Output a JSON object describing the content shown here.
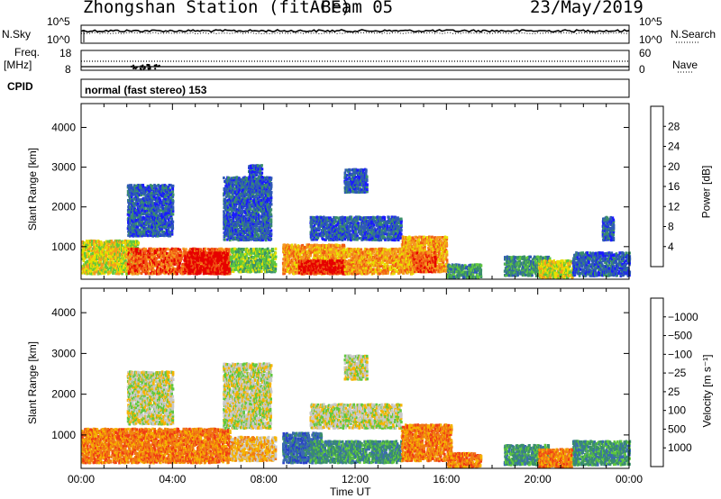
{
  "header": {
    "station": "Zhongshan Station (fitACF)",
    "beam": "Beam 05",
    "date": "23/May/2019"
  },
  "strip_labels": {
    "nsky": "N.Sky",
    "nsearch": "N.Search",
    "freq_line1": "Freq.",
    "freq_line2": "[MHz]",
    "nave": "Nave",
    "cpid": "CPID",
    "cpid_text": "normal (fast stereo) 153",
    "noise_ticks": [
      "10^5",
      "10^0"
    ],
    "freq_ticks": [
      "18",
      "8"
    ],
    "nave_ticks": [
      "60",
      "0"
    ]
  },
  "time_axis": {
    "label": "Time UT",
    "ticks": [
      "00:00",
      "04:00",
      "08:00",
      "12:00",
      "16:00",
      "20:00",
      "00:00"
    ]
  },
  "chart_data": [
    {
      "type": "heatmap",
      "name": "power",
      "ylabel": "Slant Range [km]",
      "yticks": [
        1000,
        2000,
        3000,
        4000
      ],
      "ylim": [
        180,
        4600
      ],
      "xlim_hours": [
        0,
        24
      ],
      "colorbar": {
        "label": "Power [dB]",
        "ticks": [
          "4",
          "8",
          "12",
          "16",
          "20",
          "24",
          "28"
        ],
        "colors": [
          "#1a1aff",
          "#2f5ab5",
          "#3a8f6a",
          "#5fc83c",
          "#e8e000",
          "#f59a1e",
          "#f05a14",
          "#e60000"
        ]
      },
      "regions": [
        {
          "t0": 0.0,
          "t1": 2.5,
          "r0": 350,
          "r1": 1200,
          "level": 4
        },
        {
          "t0": 2.0,
          "t1": 6.5,
          "r0": 350,
          "r1": 1000,
          "level": 6
        },
        {
          "t0": 4.5,
          "t1": 6.5,
          "r0": 350,
          "r1": 900,
          "level": 7
        },
        {
          "t0": 6.5,
          "t1": 8.5,
          "r0": 400,
          "r1": 1000,
          "level": 3
        },
        {
          "t0": 2.0,
          "t1": 4.0,
          "r0": 1300,
          "r1": 2600,
          "level": 1
        },
        {
          "t0": 6.2,
          "t1": 8.3,
          "r0": 1200,
          "r1": 2800,
          "level": 1
        },
        {
          "t0": 7.3,
          "t1": 7.9,
          "r0": 2500,
          "r1": 3100,
          "level": 1
        },
        {
          "t0": 8.8,
          "t1": 11.5,
          "r0": 350,
          "r1": 1100,
          "level": 5
        },
        {
          "t0": 9.5,
          "t1": 12.5,
          "r0": 350,
          "r1": 700,
          "level": 7
        },
        {
          "t0": 10.0,
          "t1": 14.0,
          "r0": 1200,
          "r1": 1800,
          "level": 1
        },
        {
          "t0": 11.5,
          "t1": 12.5,
          "r0": 2400,
          "r1": 3000,
          "level": 1
        },
        {
          "t0": 11.5,
          "t1": 14.5,
          "r0": 350,
          "r1": 1000,
          "level": 5
        },
        {
          "t0": 14.0,
          "t1": 16.0,
          "r0": 400,
          "r1": 1300,
          "level": 5
        },
        {
          "t0": 14.5,
          "t1": 15.5,
          "r0": 400,
          "r1": 900,
          "level": 6
        },
        {
          "t0": 16.0,
          "t1": 17.5,
          "r0": 250,
          "r1": 600,
          "level": 2
        },
        {
          "t0": 18.5,
          "t1": 20.5,
          "r0": 300,
          "r1": 800,
          "level": 2
        },
        {
          "t0": 20.0,
          "t1": 21.5,
          "r0": 250,
          "r1": 700,
          "level": 4
        },
        {
          "t0": 21.5,
          "t1": 24.0,
          "r0": 300,
          "r1": 900,
          "level": 1
        },
        {
          "t0": 22.8,
          "t1": 23.3,
          "r0": 1200,
          "r1": 1800,
          "level": 1
        }
      ]
    },
    {
      "type": "heatmap",
      "name": "velocity",
      "ylabel": "Slant Range [km]",
      "yticks": [
        1000,
        2000,
        3000,
        4000
      ],
      "ylim": [
        180,
        4600
      ],
      "xlim_hours": [
        0,
        24
      ],
      "colorbar": {
        "label": "Velocity [m s⁻¹]",
        "ticks": [
          "1000",
          "500",
          "100",
          "25",
          "−25",
          "−100",
          "−500",
          "−1000"
        ],
        "colors": [
          "#2840c8",
          "#3a6bb0",
          "#3a8f6a",
          "#5fc83c",
          "#c8c8c8",
          "#f5b400",
          "#f07a14",
          "#f03c14",
          "#e60000"
        ]
      },
      "regions": [
        {
          "t0": 0.0,
          "t1": 6.5,
          "r0": 350,
          "r1": 1200,
          "level": 6
        },
        {
          "t0": 6.5,
          "t1": 8.5,
          "r0": 400,
          "r1": 1000,
          "level": 5
        },
        {
          "t0": 2.0,
          "t1": 4.0,
          "r0": 1300,
          "r1": 2600,
          "level": 4
        },
        {
          "t0": 6.2,
          "t1": 8.3,
          "r0": 1200,
          "r1": 2800,
          "level": 4
        },
        {
          "t0": 8.8,
          "t1": 10.5,
          "r0": 350,
          "r1": 1100,
          "level": 1
        },
        {
          "t0": 10.0,
          "t1": 14.0,
          "r0": 350,
          "r1": 900,
          "level": 2
        },
        {
          "t0": 10.0,
          "t1": 14.0,
          "r0": 1200,
          "r1": 1800,
          "level": 4
        },
        {
          "t0": 11.5,
          "t1": 12.5,
          "r0": 2400,
          "r1": 3000,
          "level": 4
        },
        {
          "t0": 14.0,
          "t1": 16.2,
          "r0": 400,
          "r1": 1300,
          "level": 6
        },
        {
          "t0": 16.0,
          "t1": 17.5,
          "r0": 250,
          "r1": 600,
          "level": 6
        },
        {
          "t0": 18.5,
          "t1": 20.5,
          "r0": 300,
          "r1": 800,
          "level": 2
        },
        {
          "t0": 20.0,
          "t1": 21.5,
          "r0": 250,
          "r1": 700,
          "level": 6
        },
        {
          "t0": 21.5,
          "t1": 24.0,
          "r0": 300,
          "r1": 900,
          "level": 2
        }
      ]
    }
  ]
}
